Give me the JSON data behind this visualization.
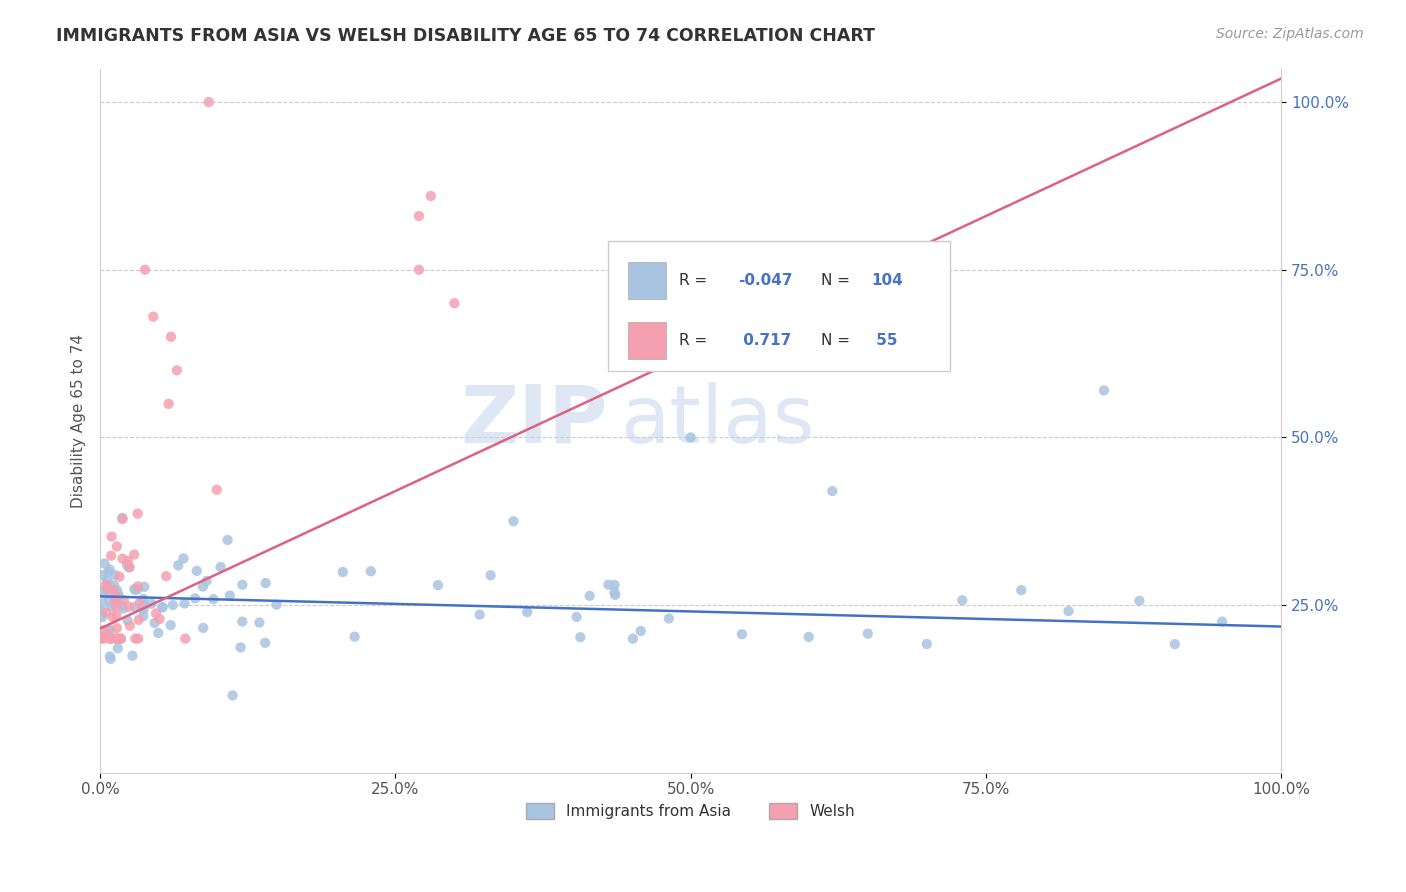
{
  "title": "IMMIGRANTS FROM ASIA VS WELSH DISABILITY AGE 65 TO 74 CORRELATION CHART",
  "source": "Source: ZipAtlas.com",
  "ylabel": "Disability Age 65 to 74",
  "x_min": 0.0,
  "x_max": 1.0,
  "y_min": 0.0,
  "y_max": 1.05,
  "x_tick_labels": [
    "0.0%",
    "25.0%",
    "50.0%",
    "75.0%",
    "100.0%"
  ],
  "x_tick_vals": [
    0.0,
    0.25,
    0.5,
    0.75,
    1.0
  ],
  "y_tick_labels": [
    "25.0%",
    "50.0%",
    "75.0%",
    "100.0%"
  ],
  "y_tick_vals": [
    0.25,
    0.5,
    0.75,
    1.0
  ],
  "blue_R": -0.047,
  "blue_N": 104,
  "pink_R": 0.717,
  "pink_N": 55,
  "blue_color": "#a8c4e0",
  "pink_color": "#f4a0b0",
  "blue_line_color": "#4472c4",
  "pink_line_color": "#e06080",
  "watermark_zip": "ZIP",
  "watermark_atlas": "atlas",
  "legend_label_blue": "Immigrants from Asia",
  "legend_label_pink": "Welsh",
  "blue_intercept": 0.263,
  "blue_slope": -0.045,
  "pink_intercept": 0.215,
  "pink_slope": 0.82,
  "tick_color_right": "#4472c4",
  "tick_color_bottom": "#555555"
}
